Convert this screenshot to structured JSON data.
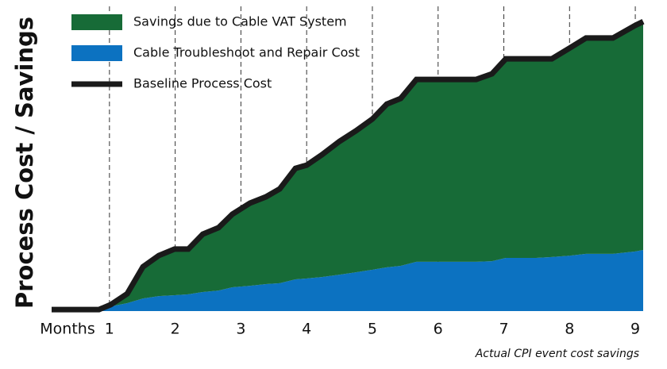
{
  "chart_data": {
    "type": "area",
    "xlabel": "Months",
    "ylabel": "Process Cost / Savings",
    "annotation": "Actual CPI event cost savings",
    "legend": "top-left",
    "stacked": true,
    "x": [
      0.12,
      0.84,
      1.02,
      1.27,
      1.51,
      1.75,
      1.99,
      2.2,
      2.42,
      2.66,
      2.87,
      3.14,
      3.38,
      3.59,
      3.83,
      4.0,
      4.23,
      4.5,
      4.75,
      5.0,
      5.22,
      5.43,
      5.67,
      6.0,
      6.28,
      6.58,
      6.82,
      7.03,
      7.49,
      7.73,
      8.01,
      8.25,
      8.66,
      9.0,
      9.12
    ],
    "series": [
      {
        "name": "Savings due to Cable VAT System",
        "color": "#176b37",
        "stack": true,
        "values": [
          0,
          0,
          0.6,
          3.2,
          10.8,
          13.8,
          15.7,
          15.4,
          19.7,
          21.4,
          24.9,
          28.2,
          29.7,
          32.1,
          37.8,
          38.6,
          41.6,
          45.4,
          48.2,
          51.3,
          55.6,
          57.0,
          62.1,
          62.1,
          62.1,
          62.1,
          63.8,
          67.8,
          67.8,
          67.5,
          70.8,
          73.5,
          73.5,
          77.0,
          77.8
        ]
      },
      {
        "name": "Cable Troubleshoot and Repair Cost",
        "color": "#0c72c1",
        "stack": true,
        "values": [
          0.5,
          0.5,
          1.6,
          2.7,
          4.3,
          5.1,
          5.4,
          5.7,
          6.5,
          7.0,
          8.1,
          8.6,
          9.2,
          9.5,
          10.8,
          11.1,
          11.6,
          12.4,
          13.2,
          14.1,
          14.9,
          15.4,
          16.8,
          16.8,
          16.8,
          16.8,
          17.0,
          18.1,
          18.1,
          18.4,
          18.9,
          19.5,
          19.5,
          20.3,
          20.8
        ]
      },
      {
        "name": "Baseline Process Cost",
        "color": "#1a1a1a",
        "stack": false,
        "values": [
          0.5,
          0.5,
          2.2,
          5.9,
          15.1,
          18.9,
          21.1,
          21.1,
          26.2,
          28.4,
          33.0,
          36.8,
          38.9,
          41.6,
          48.6,
          49.7,
          53.2,
          57.8,
          61.4,
          65.4,
          70.5,
          72.4,
          78.9,
          78.9,
          78.9,
          78.9,
          80.8,
          85.9,
          85.9,
          85.9,
          89.7,
          93.0,
          93.0,
          97.3,
          98.6
        ]
      }
    ],
    "xlim": [
      0.12,
      9.12
    ],
    "ylim": [
      0,
      100
    ],
    "xticks": [
      1,
      2,
      3,
      4,
      5,
      6,
      7,
      8,
      9
    ]
  }
}
